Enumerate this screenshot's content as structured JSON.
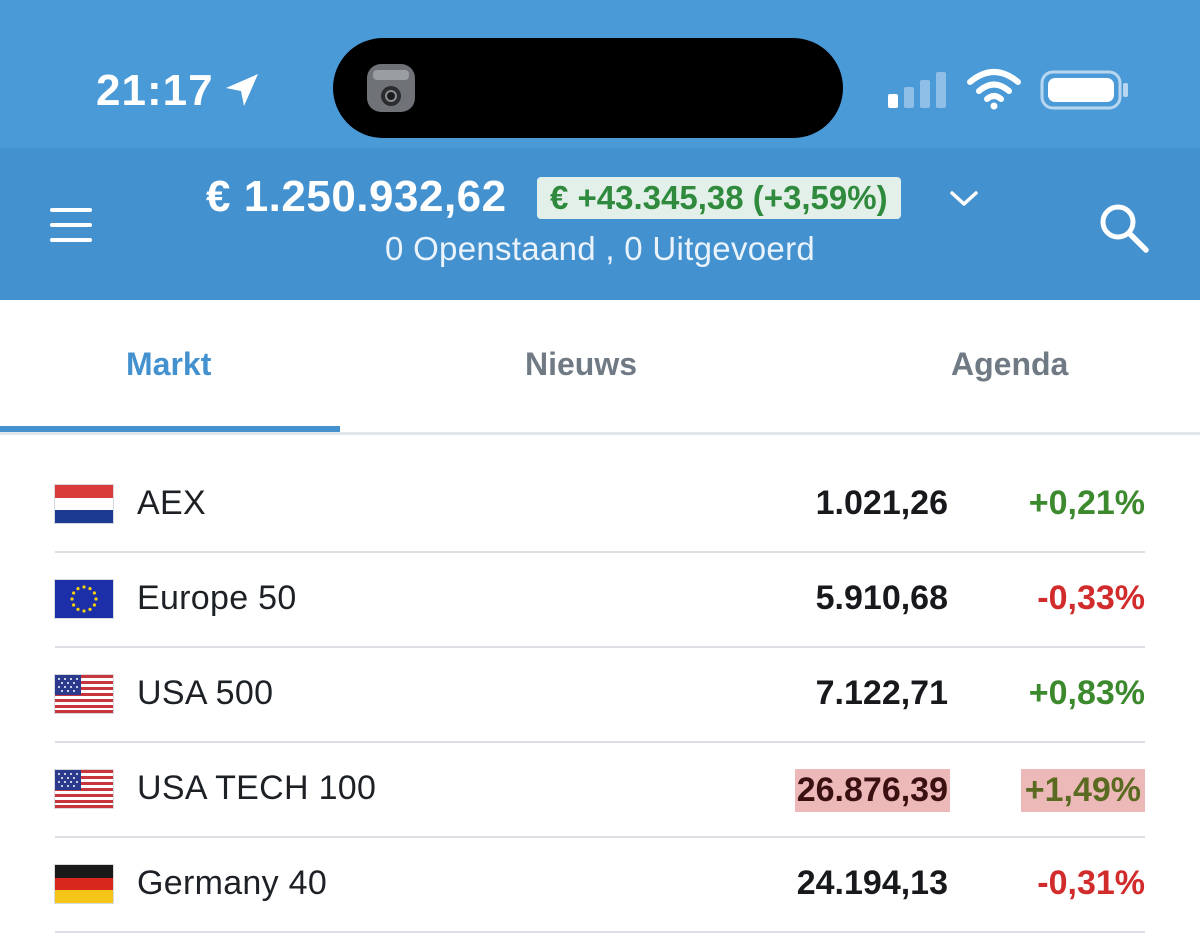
{
  "status_bar": {
    "time": "21:17",
    "icons": [
      "location-arrow-icon",
      "camera-icon",
      "cellular-signal-icon",
      "wifi-icon",
      "battery-icon"
    ]
  },
  "header": {
    "balance": "€ 1.250.932,62",
    "change": "€ +43.345,38 (+3,59%)",
    "orders_status": "0 Openstaand , 0 Uitgevoerd",
    "icons": [
      "menu-icon",
      "chevron-down-icon",
      "search-icon"
    ]
  },
  "tabs": [
    {
      "label": "Markt",
      "active": true
    },
    {
      "label": "Nieuws",
      "active": false
    },
    {
      "label": "Agenda",
      "active": false
    }
  ],
  "markets": [
    {
      "flag": "netherlands-flag-icon",
      "name": "AEX",
      "price": "1.021,26",
      "change": "+0,21%",
      "direction": "up",
      "highlighted": false
    },
    {
      "flag": "eu-flag-icon",
      "name": "Europe 50",
      "price": "5.910,68",
      "change": "-0,33%",
      "direction": "down",
      "highlighted": false
    },
    {
      "flag": "usa-flag-icon",
      "name": "USA 500",
      "price": "7.122,71",
      "change": "+0,83%",
      "direction": "up",
      "highlighted": false
    },
    {
      "flag": "usa-flag-icon",
      "name": "USA TECH 100",
      "price": "26.876,39",
      "change": "+1,49%",
      "direction": "up",
      "highlighted": true
    },
    {
      "flag": "germany-flag-icon",
      "name": "Germany 40",
      "price": "24.194,13",
      "change": "-0,31%",
      "direction": "down",
      "highlighted": false
    }
  ],
  "colors": {
    "status_bar": "#4a9ad8",
    "header": "#4391cf",
    "positive": "#3c8a2d",
    "negative": "#d22b2b",
    "highlight": "#ecb8b8"
  }
}
